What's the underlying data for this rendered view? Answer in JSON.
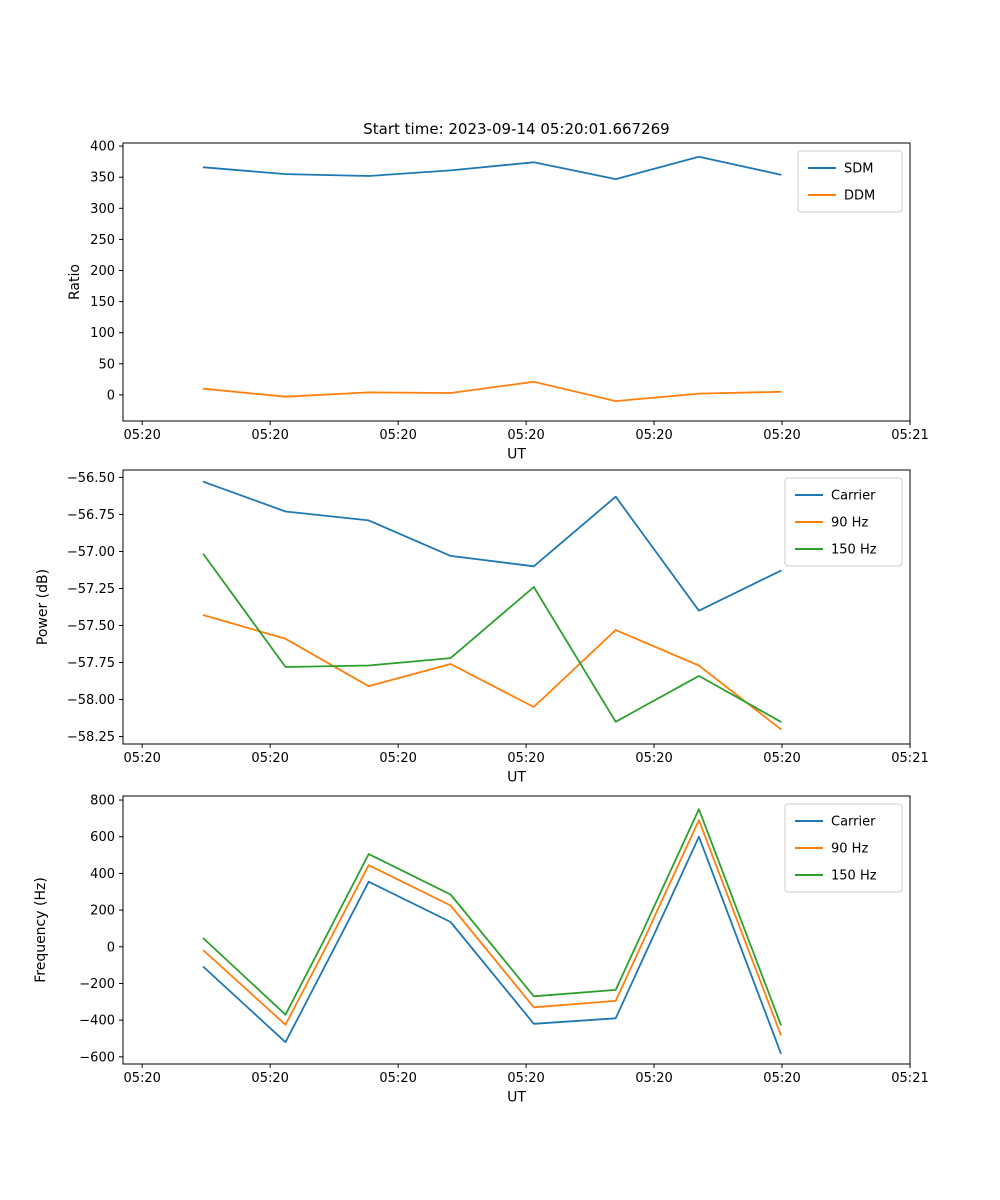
{
  "figure": {
    "background": "#ffffff",
    "accent_colors": {
      "blue": "#1f77b4",
      "orange": "#ff7f0e",
      "green": "#2ca02c"
    },
    "axis_color": "#000000",
    "legend_border_color": "#cccccc"
  },
  "chart_data": [
    {
      "type": "line",
      "title": "Start time: 2023-09-14 05:20:01.667269",
      "xlabel": "UT",
      "ylabel": "Ratio",
      "legend_position": "upper_right",
      "x_tick_labels": [
        "05:20",
        "05:20",
        "05:20",
        "05:20",
        "05:20",
        "05:20",
        "05:21"
      ],
      "x_tick_seconds": [
        0,
        10,
        20,
        30,
        40,
        50,
        60
      ],
      "xlim_seconds": [
        -1.5,
        60
      ],
      "y_ticks": [
        0,
        50,
        100,
        150,
        200,
        250,
        300,
        350,
        400
      ],
      "y_tick_labels": [
        "0",
        "50",
        "100",
        "150",
        "200",
        "250",
        "300",
        "350",
        "400"
      ],
      "ylim": [
        -42,
        405
      ],
      "x_seconds": [
        4.8,
        11.2,
        17.7,
        24.1,
        30.6,
        37.0,
        43.5,
        49.9
      ],
      "series": [
        {
          "name": "SDM",
          "color": "#1f77b4",
          "values": [
            366,
            355,
            352,
            361,
            374,
            347,
            383,
            354
          ]
        },
        {
          "name": "DDM",
          "color": "#ff7f0e",
          "values": [
            10,
            -3,
            4,
            3,
            21,
            -10,
            2,
            5
          ]
        }
      ]
    },
    {
      "type": "line",
      "title": "",
      "xlabel": "UT",
      "ylabel": "Power (dB)",
      "legend_position": "upper_right",
      "x_tick_labels": [
        "05:20",
        "05:20",
        "05:20",
        "05:20",
        "05:20",
        "05:20",
        "05:21"
      ],
      "x_tick_seconds": [
        0,
        10,
        20,
        30,
        40,
        50,
        60
      ],
      "xlim_seconds": [
        -1.5,
        60
      ],
      "y_ticks": [
        -58.25,
        -58.0,
        -57.75,
        -57.5,
        -57.25,
        -57.0,
        -56.75,
        -56.5
      ],
      "y_tick_labels": [
        "−58.25",
        "−58.00",
        "−57.75",
        "−57.50",
        "−57.25",
        "−57.00",
        "−56.75",
        "−56.50"
      ],
      "ylim": [
        -58.3,
        -56.45
      ],
      "x_seconds": [
        4.8,
        11.2,
        17.7,
        24.1,
        30.6,
        37.0,
        43.5,
        49.9
      ],
      "series": [
        {
          "name": "Carrier",
          "color": "#1f77b4",
          "values": [
            -56.53,
            -56.73,
            -56.79,
            -57.03,
            -57.1,
            -56.63,
            -57.4,
            -57.13
          ]
        },
        {
          "name": "90 Hz",
          "color": "#ff7f0e",
          "values": [
            -57.43,
            -57.59,
            -57.91,
            -57.76,
            -58.05,
            -57.53,
            -57.77,
            -58.2
          ]
        },
        {
          "name": "150 Hz",
          "color": "#2ca02c",
          "values": [
            -57.02,
            -57.78,
            -57.77,
            -57.72,
            -57.24,
            -58.15,
            -57.84,
            -58.15
          ]
        }
      ]
    },
    {
      "type": "line",
      "title": "",
      "xlabel": "UT",
      "ylabel": "Frequency (Hz)",
      "legend_position": "upper_right",
      "x_tick_labels": [
        "05:20",
        "05:20",
        "05:20",
        "05:20",
        "05:20",
        "05:20",
        "05:21"
      ],
      "x_tick_seconds": [
        0,
        10,
        20,
        30,
        40,
        50,
        60
      ],
      "xlim_seconds": [
        -1.5,
        60
      ],
      "y_ticks": [
        -600,
        -400,
        -200,
        0,
        200,
        400,
        600,
        800
      ],
      "y_tick_labels": [
        "−600",
        "−400",
        "−200",
        "0",
        "200",
        "400",
        "600",
        "800"
      ],
      "ylim": [
        -639,
        822
      ],
      "x_seconds": [
        4.8,
        11.2,
        17.7,
        24.1,
        30.6,
        37.0,
        43.5,
        49.9
      ],
      "series": [
        {
          "name": "Carrier",
          "color": "#1f77b4",
          "values": [
            -110,
            -520,
            355,
            135,
            -420,
            -390,
            600,
            -580
          ]
        },
        {
          "name": "90 Hz",
          "color": "#ff7f0e",
          "values": [
            -20,
            -425,
            445,
            225,
            -330,
            -295,
            690,
            -480
          ]
        },
        {
          "name": "150 Hz",
          "color": "#2ca02c",
          "values": [
            45,
            -370,
            505,
            285,
            -270,
            -235,
            750,
            -425
          ]
        }
      ]
    }
  ]
}
